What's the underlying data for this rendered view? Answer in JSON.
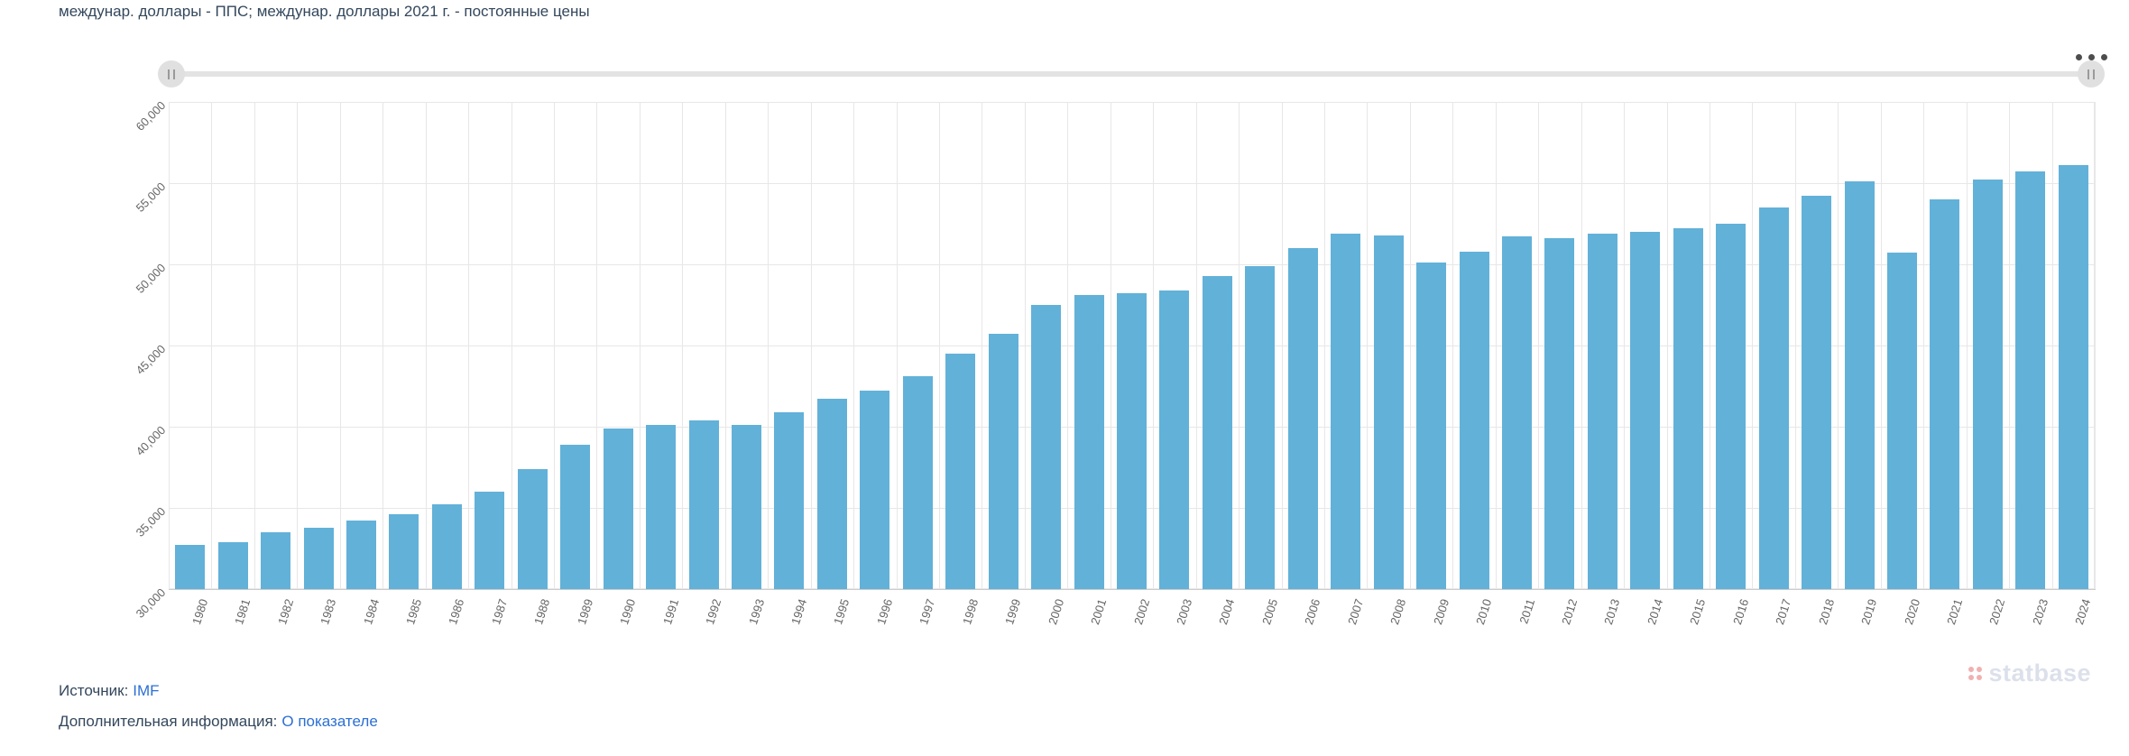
{
  "chart_data": {
    "type": "bar",
    "title": "междунар. доллары - ППС; междунар. доллары 2021 г. - постоянные цены",
    "xlabel": "",
    "ylabel": "",
    "categories": [
      "1980",
      "1981",
      "1982",
      "1983",
      "1984",
      "1985",
      "1986",
      "1987",
      "1988",
      "1989",
      "1990",
      "1991",
      "1992",
      "1993",
      "1994",
      "1995",
      "1996",
      "1997",
      "1998",
      "1999",
      "2000",
      "2001",
      "2002",
      "2003",
      "2004",
      "2005",
      "2006",
      "2007",
      "2008",
      "2009",
      "2010",
      "2011",
      "2012",
      "2013",
      "2014",
      "2015",
      "2016",
      "2017",
      "2018",
      "2019",
      "2020",
      "2021",
      "2022",
      "2023",
      "2024"
    ],
    "values": [
      32700,
      32900,
      33500,
      33800,
      34200,
      34600,
      35200,
      36000,
      37400,
      38900,
      39900,
      40100,
      40400,
      40100,
      40900,
      41700,
      42200,
      43100,
      44500,
      45700,
      47500,
      48100,
      48200,
      48400,
      49300,
      49900,
      51000,
      51900,
      51800,
      50100,
      50800,
      51700,
      51600,
      51900,
      52000,
      52200,
      52500,
      53500,
      54200,
      55100,
      50700,
      54000,
      55200,
      55700,
      56100
    ],
    "ylim": [
      30000,
      60000
    ],
    "ytick_step": 5000,
    "ytick_labels": [
      "30,000",
      "35,000",
      "40,000",
      "45,000",
      "50,000",
      "55,000",
      "60,000"
    ],
    "grid": true,
    "legend": "none",
    "bar_color": "#62b1d8"
  },
  "colors": {
    "bar": "#62b1d8",
    "link": "#2b6fd4",
    "title_text": "#33475c",
    "axis_label": "#666666",
    "gridline": "#e7e7e7"
  },
  "navigator": {
    "left_handle": "navigator-left-handle",
    "right_handle": "navigator-right-handle",
    "menu_icon": "ellipsis-menu-icon"
  },
  "watermark": {
    "text": "statbase"
  },
  "footer": {
    "source_label": "Источник:",
    "source_link": "IMF",
    "info_label": "Дополнительная информация:",
    "info_link": "О показателе"
  }
}
